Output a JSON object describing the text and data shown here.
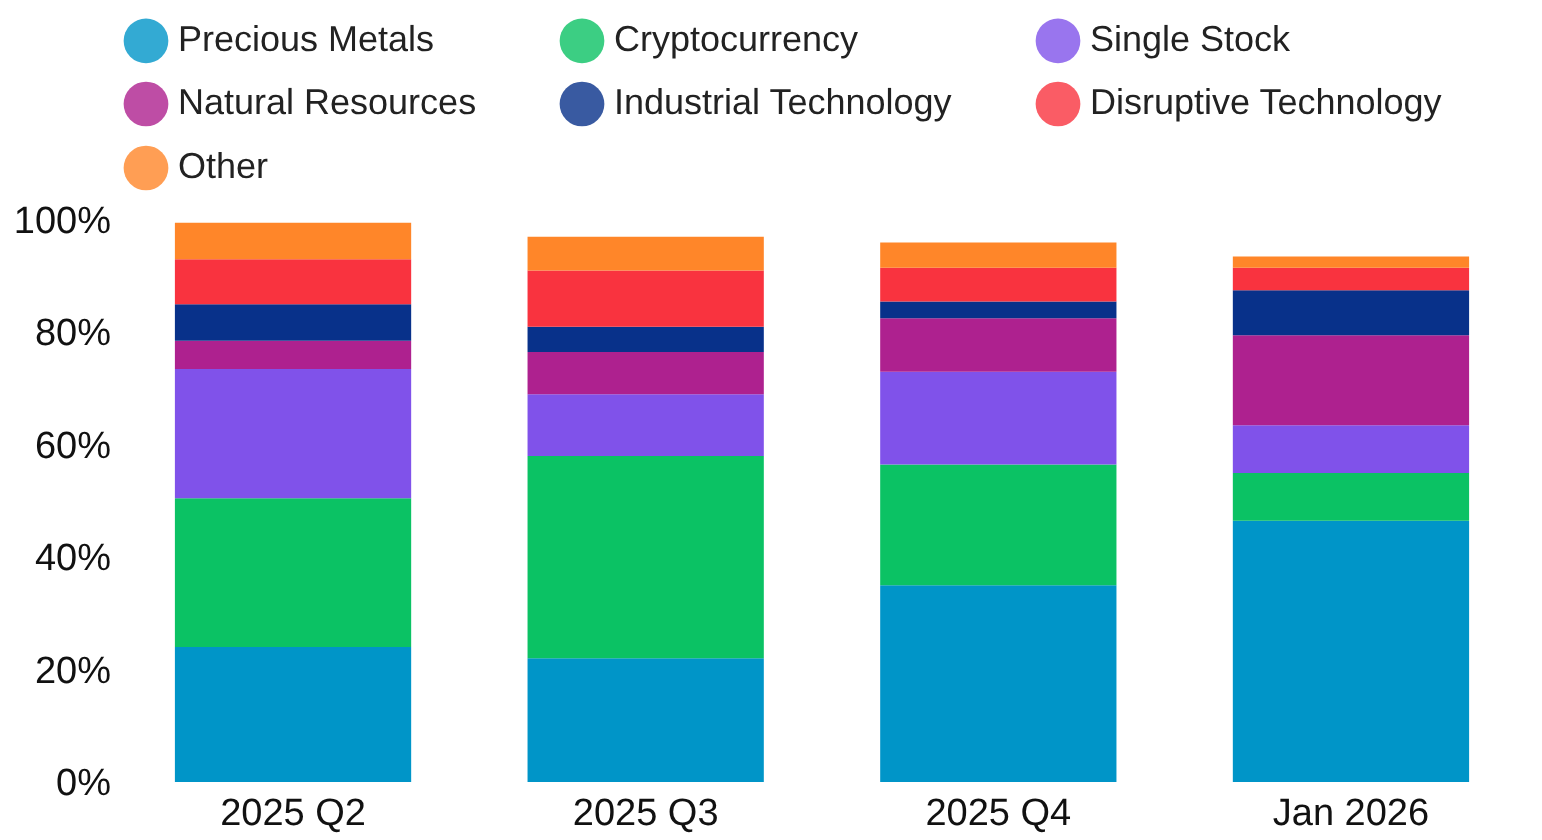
{
  "chart_data": {
    "type": "bar",
    "stacked": true,
    "categories": [
      "2025 Q2",
      "2025 Q3",
      "2025 Q4",
      "Jan 2026"
    ],
    "series": [
      {
        "name": "Precious Metals",
        "color": "#0095c8",
        "values": [
          24,
          22,
          35,
          46.5
        ]
      },
      {
        "name": "Cryptocurrency",
        "color": "#0bc264",
        "values": [
          26.5,
          36,
          21.5,
          8.5
        ]
      },
      {
        "name": "Single Stock",
        "color": "#8052ea",
        "values": [
          23,
          11,
          16.5,
          8.5
        ]
      },
      {
        "name": "Natural Resources",
        "color": "#ae218f",
        "values": [
          5,
          7.5,
          9.5,
          16
        ]
      },
      {
        "name": "Industrial Technology",
        "color": "#08318a",
        "values": [
          6.5,
          4.5,
          3,
          8
        ]
      },
      {
        "name": "Disruptive Technology",
        "color": "#f9333f",
        "values": [
          8,
          10,
          6,
          4
        ]
      },
      {
        "name": "Other",
        "color": "#ff8629",
        "values": [
          6.5,
          6,
          4.5,
          2
        ]
      }
    ],
    "ylim": [
      0,
      100
    ],
    "yticks": [
      {
        "value": 0,
        "label": "0%"
      },
      {
        "value": 20,
        "label": "20%"
      },
      {
        "value": 40,
        "label": "40%"
      },
      {
        "value": 60,
        "label": "60%"
      },
      {
        "value": 80,
        "label": "80%"
      },
      {
        "value": 100,
        "label": "100%"
      }
    ],
    "grid": false,
    "legend": "top"
  }
}
